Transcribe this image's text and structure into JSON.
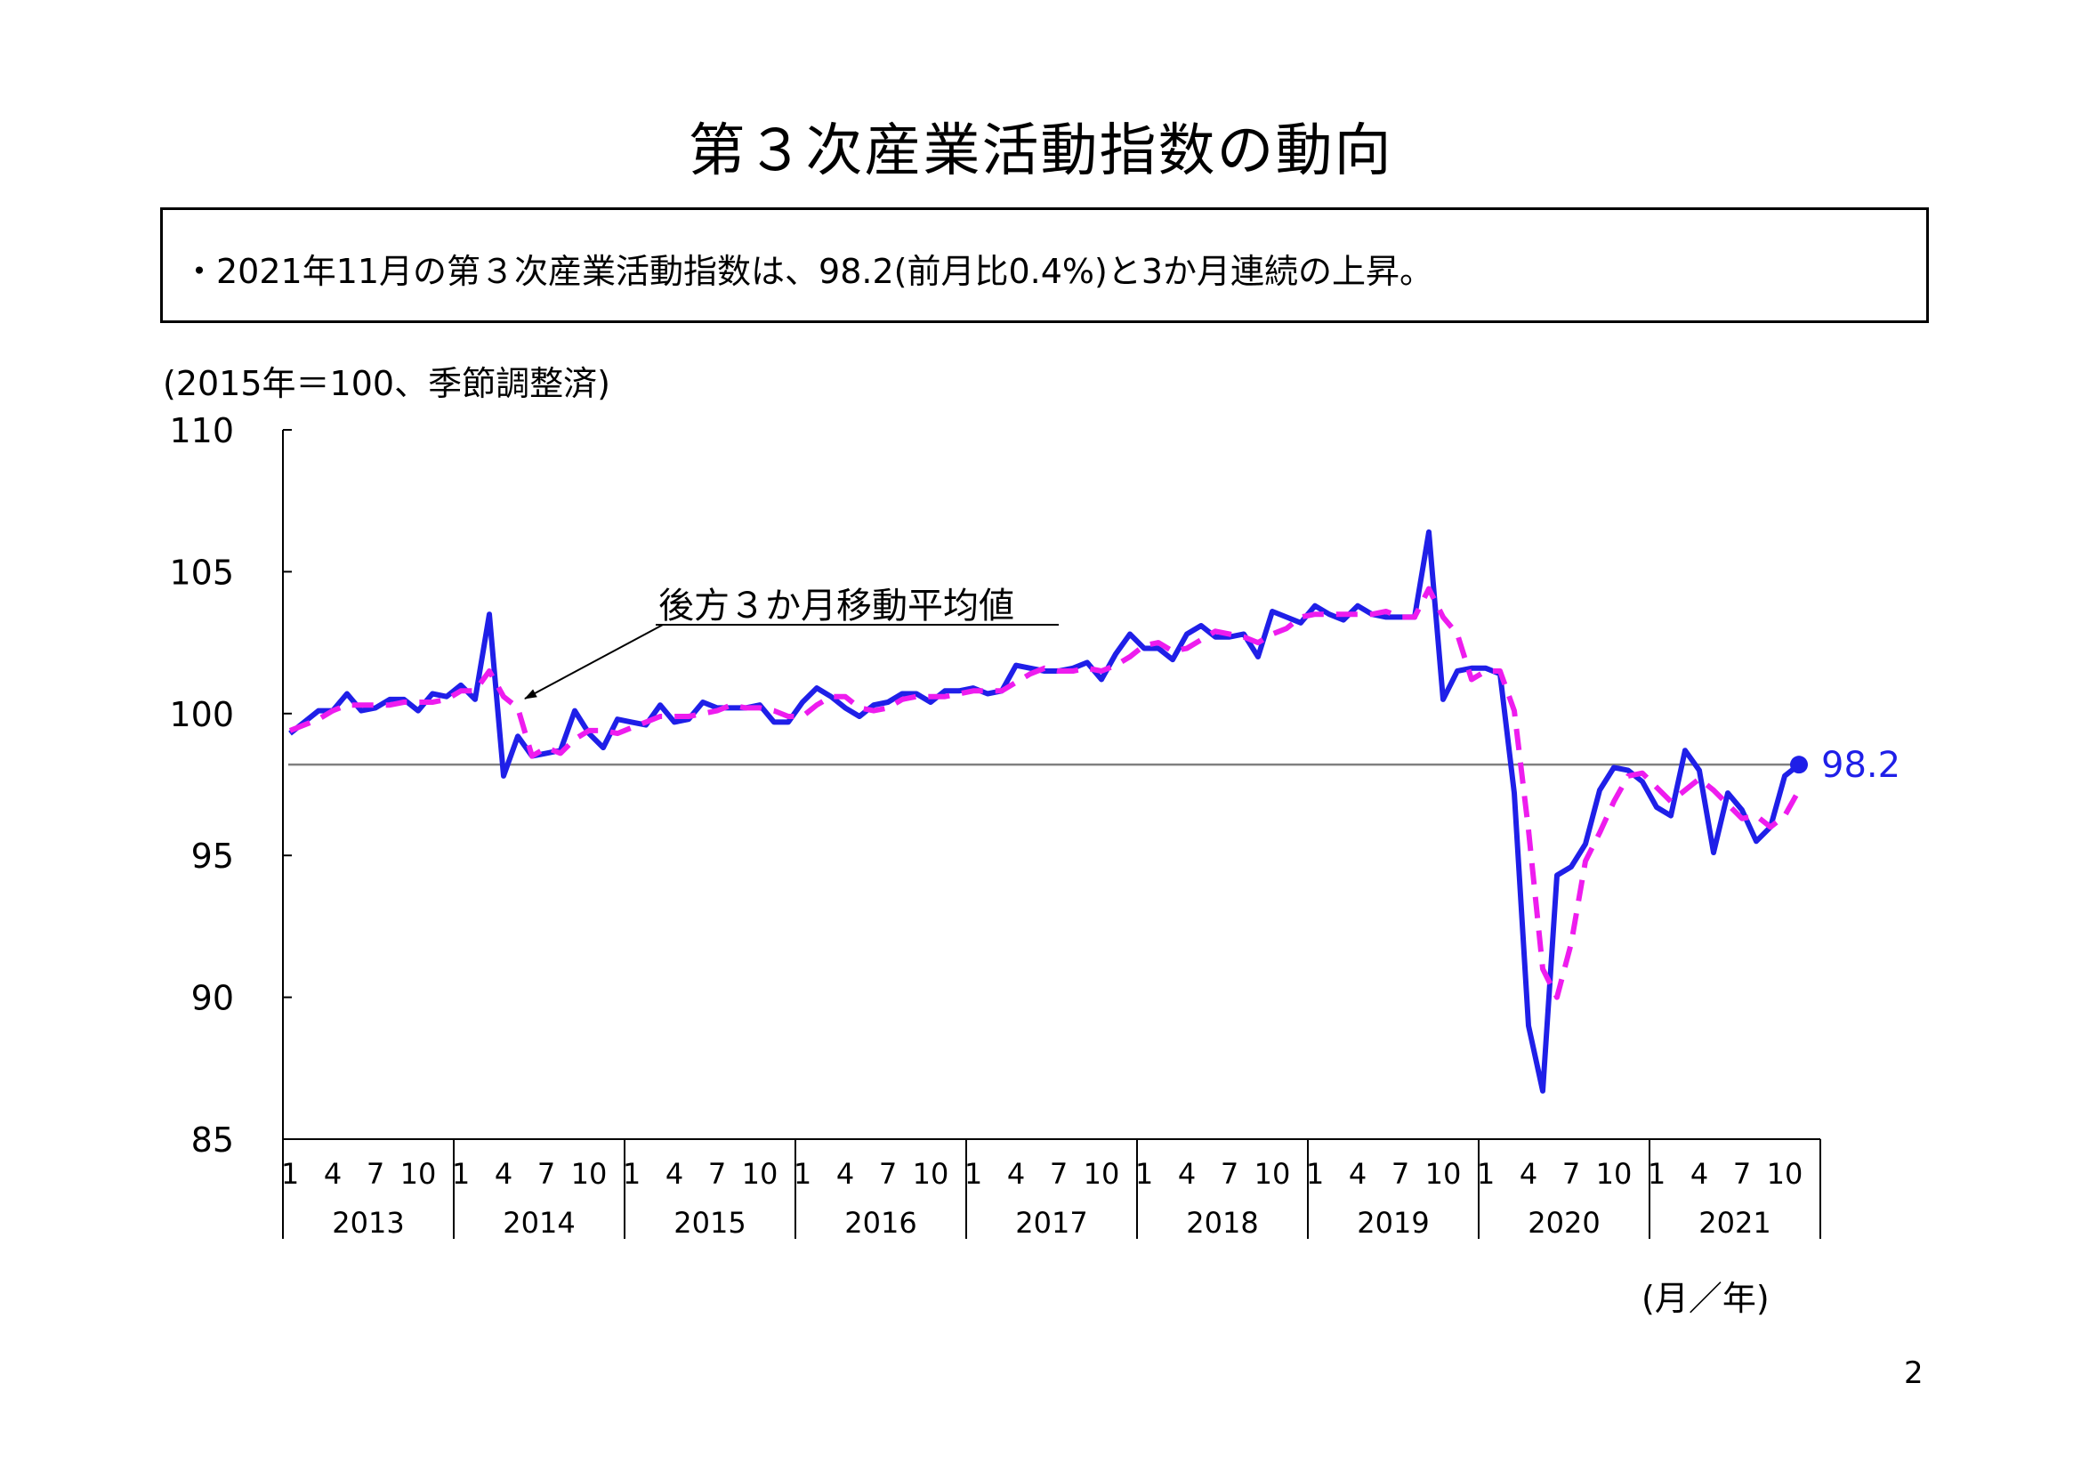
{
  "page": {
    "title": "第３次産業活動指数の動向",
    "summary": "・2021年11月の第３次産業活動指数は、98.2(前月比0.4%)と3か月連続の上昇。",
    "unit_label": "(2015年＝100、季節調整済)",
    "xaxis_unit": "(月／年)",
    "page_number": "2"
  },
  "chart_data": {
    "type": "line",
    "ylim": [
      85,
      110
    ],
    "yticks": [
      85,
      90,
      95,
      100,
      105,
      110
    ],
    "years": [
      "2013",
      "2014",
      "2015",
      "2016",
      "2017",
      "2018",
      "2019",
      "2020",
      "2021"
    ],
    "month_ticks": [
      1,
      4,
      7,
      10
    ],
    "start": "2013-01",
    "reference_line": 98.2,
    "latest_label": "98.2",
    "annotation": "後方３か月移動平均値",
    "colors": {
      "index": "#1f1fe8",
      "moving_average": "#ee1cee",
      "reference": "#808080"
    },
    "series": [
      {
        "key": "index",
        "style": "solid",
        "values": [
          99.3,
          99.7,
          100.1,
          100.1,
          100.7,
          100.1,
          100.2,
          100.5,
          100.5,
          100.1,
          100.7,
          100.6,
          101.0,
          100.5,
          103.5,
          97.8,
          99.2,
          98.5,
          98.6,
          98.7,
          100.1,
          99.3,
          98.8,
          99.8,
          99.7,
          99.6,
          100.3,
          99.7,
          99.8,
          100.4,
          100.2,
          100.2,
          100.2,
          100.3,
          99.7,
          99.7,
          100.4,
          100.9,
          100.6,
          100.2,
          99.9,
          100.3,
          100.4,
          100.7,
          100.7,
          100.4,
          100.8,
          100.8,
          100.9,
          100.7,
          100.8,
          101.7,
          101.6,
          101.5,
          101.5,
          101.6,
          101.8,
          101.2,
          102.1,
          102.8,
          102.3,
          102.3,
          101.9,
          102.8,
          103.1,
          102.7,
          102.7,
          102.8,
          102.0,
          103.6,
          103.4,
          103.2,
          103.8,
          103.5,
          103.3,
          103.8,
          103.5,
          103.4,
          103.4,
          103.4,
          106.4,
          100.5,
          101.5,
          101.6,
          101.6,
          101.4,
          97.2,
          89.0,
          86.7,
          94.3,
          94.6,
          95.4,
          97.3,
          98.1,
          98.0,
          97.6,
          96.7,
          96.4,
          98.7,
          98.0,
          95.1,
          97.2,
          96.6,
          95.5,
          96.0,
          97.8,
          98.2
        ]
      },
      {
        "key": "moving_average",
        "style": "dashed",
        "values": [
          99.4,
          99.6,
          99.8,
          100.1,
          100.3,
          100.3,
          100.3,
          100.3,
          100.4,
          100.4,
          100.4,
          100.5,
          100.8,
          100.8,
          101.5,
          100.6,
          100.2,
          98.5,
          98.8,
          98.6,
          99.1,
          99.4,
          99.4,
          99.3,
          99.5,
          99.7,
          99.9,
          99.9,
          99.9,
          100.0,
          100.1,
          100.3,
          100.2,
          100.2,
          100.1,
          99.9,
          99.9,
          100.3,
          100.6,
          100.6,
          100.2,
          100.1,
          100.2,
          100.5,
          100.6,
          100.6,
          100.6,
          100.7,
          100.8,
          100.8,
          100.8,
          101.1,
          101.4,
          101.6,
          101.5,
          101.5,
          101.6,
          101.5,
          101.7,
          102.0,
          102.4,
          102.5,
          102.2,
          102.3,
          102.6,
          102.9,
          102.8,
          102.7,
          102.5,
          102.8,
          103.0,
          103.4,
          103.5,
          103.5,
          103.5,
          103.5,
          103.5,
          103.6,
          103.4,
          103.4,
          104.4,
          103.4,
          102.8,
          101.2,
          101.5,
          101.5,
          100.1,
          95.9,
          91.0,
          90.0,
          91.9,
          94.8,
          95.8,
          96.9,
          97.8,
          97.9,
          97.4,
          96.9,
          97.3,
          97.7,
          97.3,
          96.8,
          96.3,
          96.4,
          96.0,
          96.4,
          97.3
        ]
      }
    ]
  }
}
